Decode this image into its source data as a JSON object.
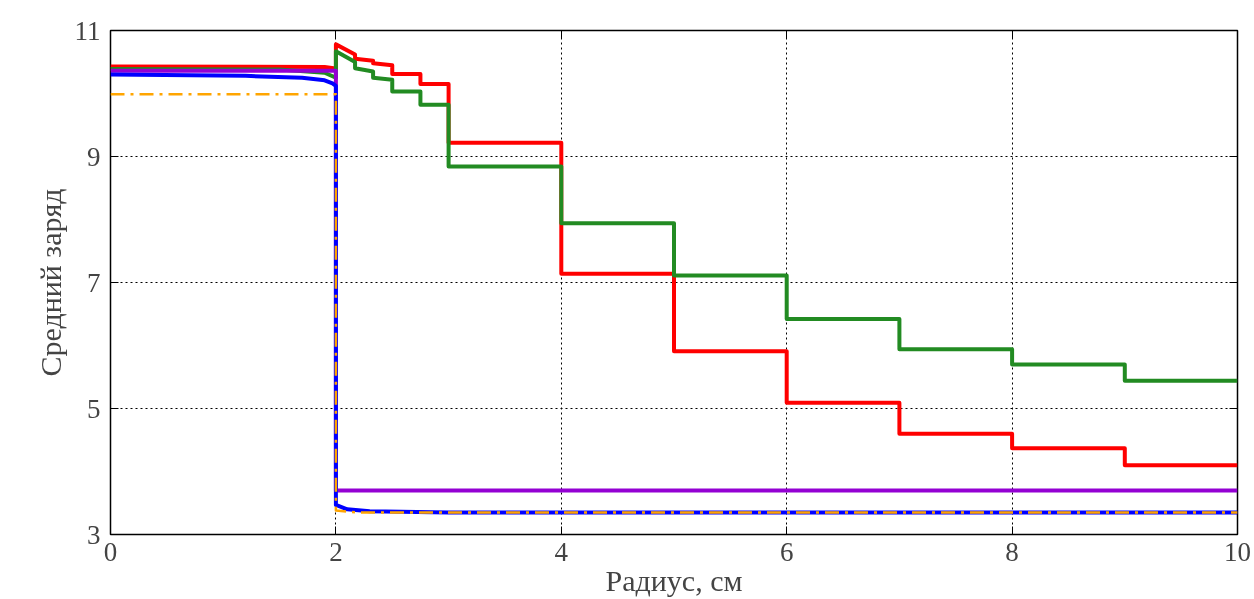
{
  "chart_data": {
    "type": "line",
    "xlabel": "Радиус, см",
    "ylabel": "Средний заряд",
    "xlim": [
      0,
      10
    ],
    "ylim": [
      3,
      11
    ],
    "xticks": [
      0,
      2,
      4,
      6,
      8,
      10
    ],
    "yticks": [
      3,
      5,
      7,
      9,
      11
    ],
    "grid": true,
    "marker": "none",
    "series": [
      {
        "color": "#ff0000",
        "x": [
          0,
          1.9,
          1.98,
          2,
          2,
          2.17,
          2.17,
          2.33,
          2.33,
          2.5,
          2.5,
          2.75,
          2.75,
          3,
          3,
          4,
          4,
          5,
          5,
          6,
          6,
          7,
          7,
          8,
          8,
          9,
          9,
          10
        ],
        "values": [
          10.43,
          10.42,
          10.4,
          10.4,
          10.78,
          10.62,
          10.55,
          10.52,
          10.48,
          10.45,
          10.31,
          10.31,
          10.15,
          10.15,
          9.22,
          9.22,
          7.14,
          7.14,
          5.91,
          5.91,
          5.09,
          5.09,
          4.6,
          4.6,
          4.37,
          4.37,
          4.1,
          4.1
        ]
      },
      {
        "color": "#228b22",
        "x": [
          0,
          1.5,
          1.9,
          2,
          2,
          2.17,
          2.17,
          2.33,
          2.33,
          2.5,
          2.5,
          2.75,
          2.75,
          3,
          3,
          4,
          4,
          5,
          5,
          6,
          6,
          7,
          7,
          8,
          8,
          9,
          9,
          10
        ],
        "values": [
          10.39,
          10.38,
          10.33,
          10.25,
          10.67,
          10.5,
          10.4,
          10.35,
          10.25,
          10.22,
          10.03,
          10.03,
          9.82,
          9.82,
          8.84,
          8.84,
          7.94,
          7.94,
          7.11,
          7.11,
          6.42,
          6.42,
          5.94,
          5.94,
          5.7,
          5.7,
          5.44,
          5.44
        ]
      },
      {
        "color": "#9400d3",
        "x": [
          0,
          2,
          2,
          10
        ],
        "values": [
          10.36,
          10.36,
          3.7,
          3.7
        ]
      },
      {
        "color": "#0000ff",
        "x": [
          0,
          1.2,
          1.7,
          1.9,
          1.97,
          2,
          2,
          2.1,
          2.3,
          3,
          10
        ],
        "values": [
          10.3,
          10.28,
          10.25,
          10.21,
          10.16,
          10.12,
          3.47,
          3.4,
          3.37,
          3.35,
          3.35
        ]
      },
      {
        "color": "#ffa500",
        "line_style": "dashed",
        "x": [
          0,
          2,
          2,
          2.2,
          10
        ],
        "values": [
          9.99,
          9.99,
          3.38,
          3.35,
          3.35
        ]
      }
    ]
  }
}
